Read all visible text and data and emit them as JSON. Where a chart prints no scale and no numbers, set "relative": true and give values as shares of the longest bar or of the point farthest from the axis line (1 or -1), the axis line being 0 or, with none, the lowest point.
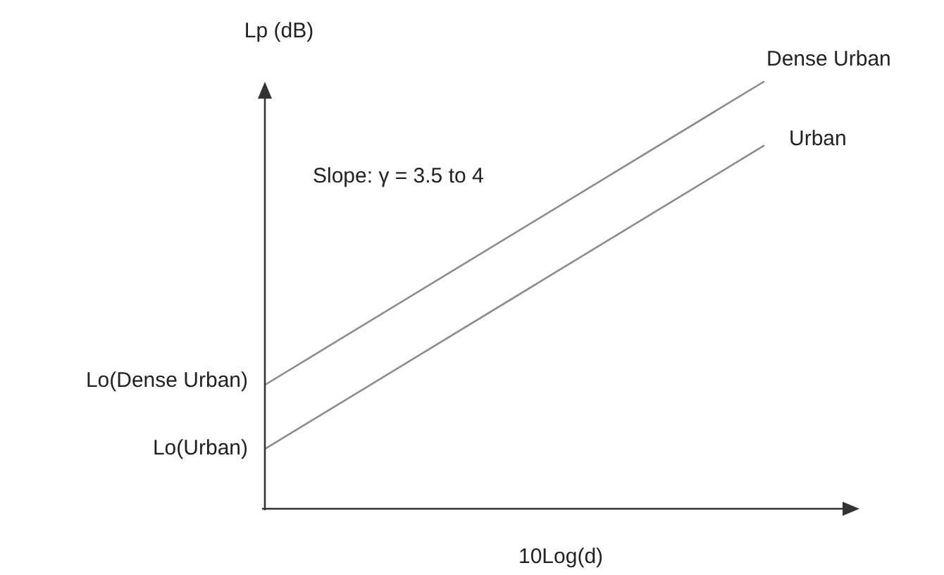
{
  "chart_data": {
    "type": "line",
    "relative": true,
    "xlabel": "10Log(d)",
    "ylabel": "Lp (dB)",
    "categories": [
      null,
      null
    ],
    "series": [
      {
        "name": "Dense Urban",
        "color": "#8c8c8c",
        "values": [
          0.29,
          1
        ]
      },
      {
        "name": "Urban",
        "color": "#8c8c8c",
        "values": [
          0.14,
          0.85
        ]
      }
    ],
    "annotations": [
      "Lo(Dense Urban)",
      "Lo(Urban)",
      "Slope: γ = 3.5 to 4"
    ],
    "marker": "none",
    "line_style": "solid",
    "grid": false,
    "legend": false
  }
}
